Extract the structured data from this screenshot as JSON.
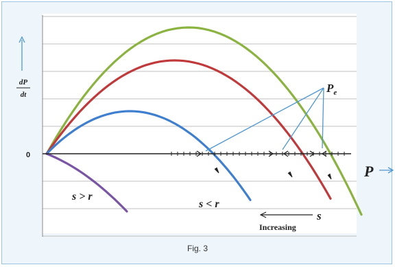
{
  "figure": {
    "caption": "Fig. 3"
  },
  "chart_data": {
    "type": "line",
    "axes": {
      "ylabel_top": "dP",
      "ylabel_bottom": "dt",
      "xlabel": "P",
      "origin_label": "0",
      "grid": true
    },
    "colors": {
      "axis": "#222222",
      "grid": "#bfbfbf",
      "green": "#8ab33f",
      "red": "#c0393b",
      "blue": "#3f7fcf",
      "purple": "#7a55a6",
      "annotation": "#4f97d4"
    },
    "annotations": {
      "pe_label": "P",
      "pe_sub": "e",
      "s_gt_r": "s > r",
      "s_lt_r": "s < r",
      "s_label": "s",
      "increasing": "Increasing"
    },
    "series": [
      {
        "color": "green",
        "peak": 4.6,
        "root": 9.2,
        "end": 10.2
      },
      {
        "color": "red",
        "peak": 3.4,
        "root": 8.3,
        "end": 9.2
      },
      {
        "color": "blue",
        "peak": 1.55,
        "root": 5.4,
        "end": 6.6
      },
      {
        "color": "purple",
        "peak": 0,
        "root": 0,
        "end": 2.6,
        "slope_end": -2.1
      }
    ]
  }
}
